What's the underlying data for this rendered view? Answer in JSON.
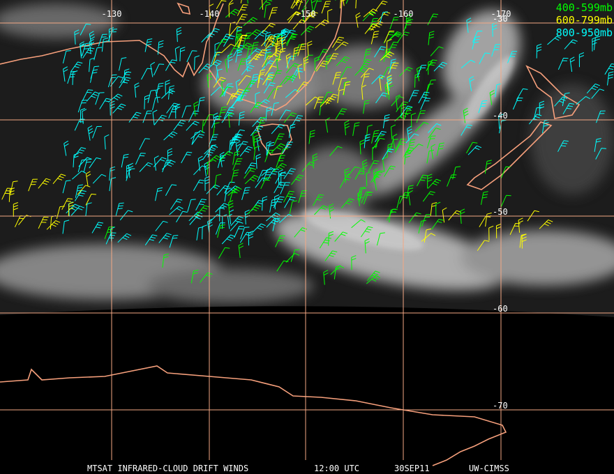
{
  "map": {
    "lon_labels": [
      "-130",
      "-140",
      "-150",
      "-160",
      "-170"
    ],
    "lat_labels": [
      "-30",
      "-40",
      "-50",
      "-60",
      "-70"
    ],
    "legend": [
      {
        "label": "400-599mb",
        "color": "#00ff00"
      },
      {
        "label": "600-799mb",
        "color": "#ffff00"
      },
      {
        "label": "800-950mb",
        "color": "#00ffff"
      }
    ],
    "footer": {
      "product": "MTSAT INFRARED-CLOUD DRIFT WINDS",
      "time": "12:00 UTC",
      "date": "30SEP11",
      "source": "UW-CIMSS"
    }
  }
}
